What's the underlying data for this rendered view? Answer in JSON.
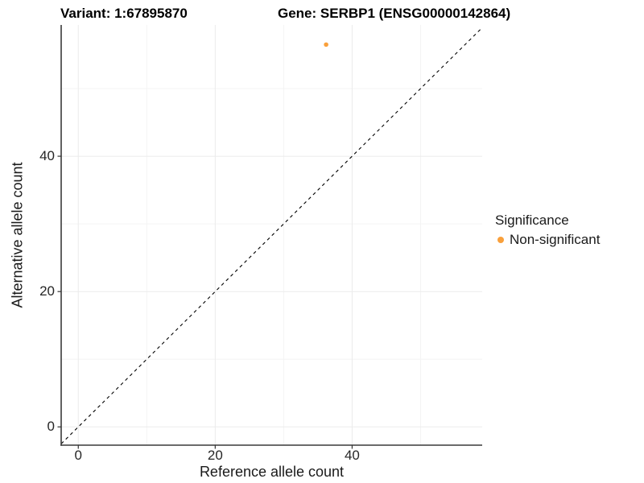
{
  "titles": {
    "variant": "Variant: 1:67895870",
    "gene": "Gene: SERBP1 (ENSG00000142864)"
  },
  "chart_data": {
    "type": "scatter",
    "title": "Variant: 1:67895870   Gene: SERBP1 (ENSG00000142864)",
    "xlabel": "Reference allele count",
    "ylabel": "Alternative allele count",
    "xlim": [
      -2.5,
      59.0
    ],
    "ylim": [
      -2.7,
      59.4
    ],
    "x_ticks": [
      0,
      20,
      40
    ],
    "y_ticks": [
      0,
      20,
      40
    ],
    "x_minor_ticks": [
      10,
      30,
      50
    ],
    "y_minor_ticks": [
      10,
      30,
      50
    ],
    "grid": "major+minor",
    "legend_position": "right",
    "series": [
      {
        "name": "Non-significant",
        "color": "#F9A03C",
        "points": [
          {
            "x": 36.2,
            "y": 56.5
          }
        ]
      }
    ],
    "reference_line": {
      "kind": "identity y=x",
      "style": "dashed",
      "color": "#000000"
    }
  },
  "legend": {
    "title": "Significance",
    "items": [
      {
        "label": "Non-significant",
        "color": "#F9A03C"
      }
    ]
  },
  "colors": {
    "background": "#FFFFFF",
    "axis_line": "#3a3a3a",
    "tick_mark": "#333333",
    "tick_text": "#262626",
    "grid_major": "#EBEBEB",
    "grid_minor": "#F4F4F4",
    "point": "#F9A03C",
    "identity_line": "#000000"
  }
}
